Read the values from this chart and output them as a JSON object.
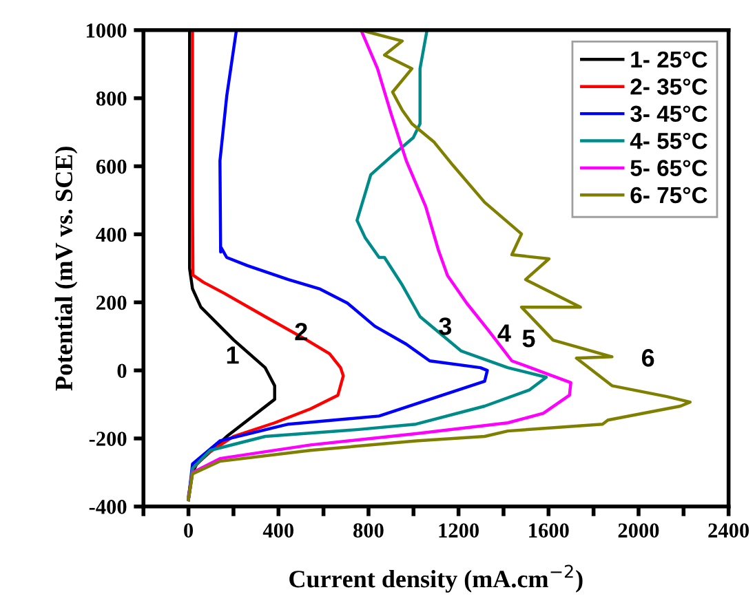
{
  "chart_data": {
    "type": "line",
    "xlabel": "Current density (mA.cm$^{−2}$)",
    "ylabel": "Potential (mV vs. SCE)",
    "xlim": [
      -200,
      2400
    ],
    "ylim": [
      -400,
      1000
    ],
    "xticks": [
      {
        "value": -200,
        "label": null
      },
      0,
      {
        "value": 200,
        "label": null
      },
      400,
      {
        "value": 600,
        "label": null
      },
      800,
      {
        "value": 1000,
        "label": null
      },
      1200,
      {
        "value": 1400,
        "label": null
      },
      1600,
      {
        "value": 1800,
        "label": null
      },
      2000,
      {
        "value": 2200,
        "label": null
      },
      2400
    ],
    "yticks": [
      -400,
      -200,
      0,
      200,
      400,
      600,
      800,
      1000
    ],
    "grid": false,
    "legend": "top right",
    "marker": "none",
    "line_style": "solid",
    "series": [
      {
        "name": "1- 25°C",
        "color": "#000000",
        "x": [
          0,
          18,
          37,
          170,
          383,
          383,
          341,
          200,
          55,
          18,
          5,
          5
        ],
        "values": [
          -380,
          -300,
          -275,
          -194,
          -85,
          -45,
          8,
          90,
          186,
          240,
          300,
          1000
        ]
      },
      {
        "name": "2- 35°C",
        "color": "#ff0000",
        "x": [
          0,
          20,
          79,
          200,
          383,
          542,
          664,
          688,
          676,
          627,
          524,
          341,
          158,
          67,
          20,
          18,
          18
        ],
        "values": [
          -369,
          -288,
          -247,
          -194,
          -154,
          -113,
          -73,
          -16,
          8,
          49,
          90,
          158,
          227,
          259,
          280,
          500,
          1000
        ]
      },
      {
        "name": "3- 45°C",
        "color": "#0000ff",
        "x": [
          0,
          18,
          140,
          444,
          847,
          1316,
          1328,
          1297,
          1072,
          968,
          828,
          706,
          585,
          444,
          262,
          170,
          146,
          143,
          140,
          170,
          213
        ],
        "values": [
          -380,
          -275,
          -207,
          -158,
          -134,
          -32,
          0,
          8,
          28,
          77,
          130,
          198,
          239,
          267,
          308,
          332,
          360,
          348,
          616,
          806,
          1000
        ]
      },
      {
        "name": "4- 55°C",
        "color": "#008b8b",
        "x": [
          0,
          18,
          97,
          341,
          749,
          1011,
          1316,
          1516,
          1590,
          1419,
          1212,
          1029,
          950,
          871,
          847,
          786,
          749,
          786,
          810,
          907,
          999,
          1029,
          1029,
          1060
        ],
        "values": [
          -380,
          -288,
          -235,
          -194,
          -174,
          -158,
          -105,
          -57,
          -20,
          8,
          57,
          158,
          251,
          332,
          332,
          389,
          441,
          522,
          575,
          632,
          684,
          725,
          887,
          1000
        ]
      },
      {
        "name": "5- 65°C",
        "color": "#ff00ff",
        "x": [
          0,
          18,
          140,
          542,
          1011,
          1419,
          1577,
          1693,
          1699,
          1602,
          1437,
          1334,
          1236,
          1151,
          1110,
          1054,
          968,
          901,
          840,
          767
        ],
        "values": [
          -380,
          -300,
          -259,
          -219,
          -186,
          -154,
          -126,
          -73,
          -36,
          -12,
          28,
          117,
          198,
          279,
          355,
          482,
          616,
          753,
          887,
          1000
        ]
      },
      {
        "name": "6- 75°C",
        "color": "#808000",
        "x": [
          0,
          18,
          140,
          542,
          1011,
          1316,
          1419,
          1840,
          1864,
          2186,
          2229,
          2126,
          1882,
          1724,
          1882,
          1620,
          1480,
          1742,
          1498,
          1602,
          1437,
          1480,
          1316,
          1175,
          1090,
          993,
          950,
          907,
          993,
          871,
          950,
          767
        ],
        "values": [
          -380,
          -304,
          -267,
          -235,
          -207,
          -194,
          -178,
          -158,
          -146,
          -105,
          -93,
          -77,
          -45,
          36,
          40,
          89,
          186,
          186,
          267,
          328,
          340,
          401,
          494,
          603,
          672,
          725,
          765,
          818,
          887,
          927,
          968,
          1000
        ]
      }
    ],
    "annotations": [
      "1",
      "2",
      "3",
      "4",
      "5",
      "6"
    ]
  }
}
